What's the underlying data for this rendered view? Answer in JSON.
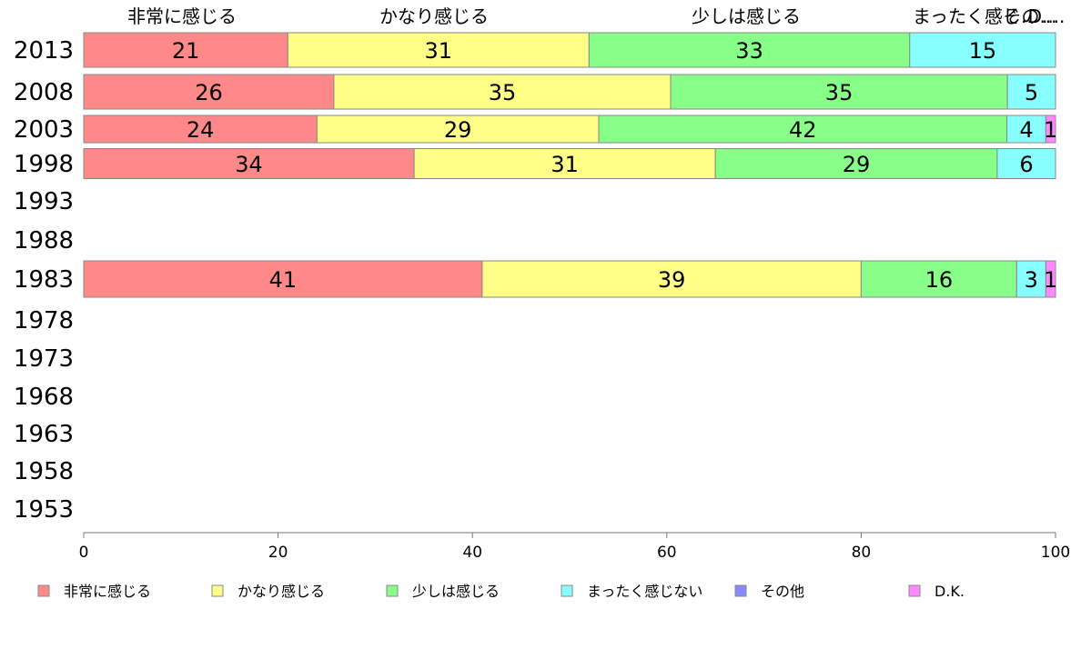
{
  "chart_data": {
    "type": "bar",
    "orientation": "horizontal",
    "stacked": true,
    "categories": [
      "2013",
      "2008",
      "2003",
      "1998",
      "1993",
      "1988",
      "1983",
      "1978",
      "1973",
      "1968",
      "1963",
      "1958",
      "1953"
    ],
    "series": [
      {
        "name": "非常に感じる",
        "color": "#ff8888",
        "values": [
          21,
          26,
          24,
          34,
          null,
          null,
          41,
          null,
          null,
          null,
          null,
          null,
          null
        ]
      },
      {
        "name": "かなり感じる",
        "color": "#ffff88",
        "values": [
          31,
          35,
          29,
          31,
          null,
          null,
          39,
          null,
          null,
          null,
          null,
          null,
          null
        ]
      },
      {
        "name": "少しは感じる",
        "color": "#88ff88",
        "values": [
          33,
          35,
          42,
          29,
          null,
          null,
          16,
          null,
          null,
          null,
          null,
          null,
          null
        ]
      },
      {
        "name": "まったく感じない",
        "color": "#88ffff",
        "values": [
          15,
          5,
          4,
          6,
          null,
          null,
          3,
          null,
          null,
          null,
          null,
          null,
          null
        ]
      },
      {
        "name": "その他",
        "color": "#8888ff",
        "values": [
          0,
          0,
          0,
          0,
          null,
          null,
          0,
          null,
          null,
          null,
          null,
          null,
          null
        ]
      },
      {
        "name": "D.K.",
        "color": "#ff88ff",
        "values": [
          0,
          0,
          1,
          0,
          null,
          null,
          1,
          null,
          null,
          null,
          null,
          null,
          null
        ]
      }
    ],
    "top_labels": [
      "非常に感じる",
      "かなり感じる",
      "少しは感じる",
      "まったく感じ...",
      "その...",
      "D...."
    ],
    "xlim": [
      0,
      100
    ],
    "xticks": [
      0,
      20,
      40,
      60,
      80,
      100
    ],
    "legend_position": "bottom",
    "grid": false
  }
}
